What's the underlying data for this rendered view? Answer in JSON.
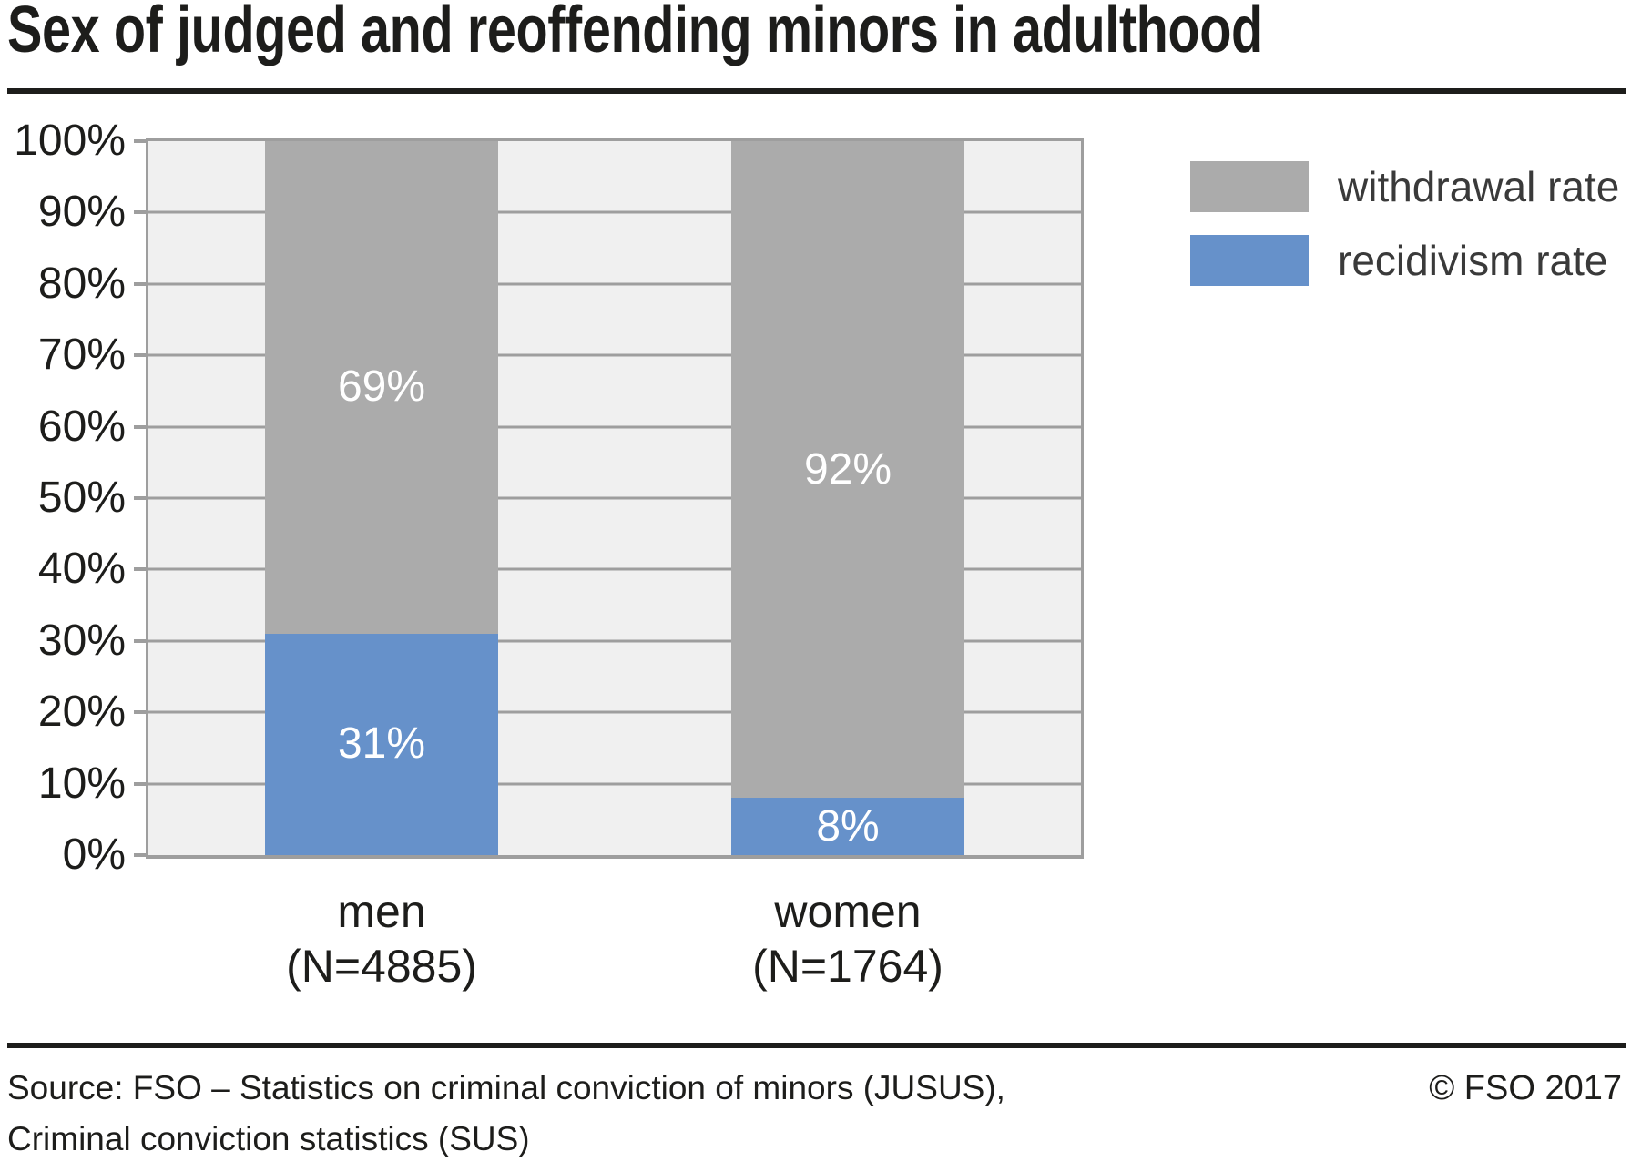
{
  "header": {
    "title": "Sex of judged and reoffending minors in adulthood"
  },
  "footer": {
    "source_line1": "Source: FSO – Statistics on criminal conviction of minors (JUSUS),",
    "source_line2": "Criminal conviction statistics (SUS)",
    "copyright": "© FSO 2017"
  },
  "colors": {
    "recidivism_blue": "#6691ca",
    "withdrawal_gray": "#ababab",
    "plot_background": "#f0f0f0",
    "grid": "#9e9e9e",
    "rule": "#1d1d1b",
    "bar_label_text": "#ffffff"
  },
  "chart_data": {
    "type": "bar",
    "stacked": true,
    "title": "Sex of judged and reoffending minors in adulthood",
    "categories": [
      "men",
      "women"
    ],
    "category_sublabels": [
      "(N=4885)",
      "(N=1764)"
    ],
    "series": [
      {
        "name": "recidivism rate",
        "color": "#6691ca",
        "values": [
          31,
          8
        ]
      },
      {
        "name": "withdrawal rate",
        "color": "#ababab",
        "values": [
          69,
          92
        ]
      }
    ],
    "value_label_suffix": "%",
    "ylim": [
      0,
      100
    ],
    "yticks": [
      0,
      10,
      20,
      30,
      40,
      50,
      60,
      70,
      80,
      90,
      100
    ],
    "ytick_suffix": "%",
    "grid": "horizontal",
    "legend": {
      "position": "right",
      "entries": [
        {
          "label": "withdrawal rate",
          "color": "#ababab"
        },
        {
          "label": "recidivism rate",
          "color": "#6691ca"
        }
      ]
    }
  }
}
